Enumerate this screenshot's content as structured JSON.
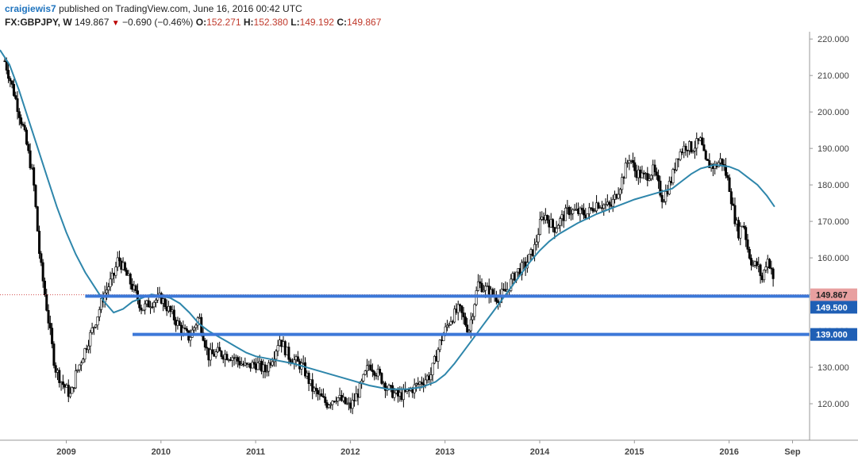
{
  "header": {
    "author": "craigiewis7",
    "published_text": "published on TradingView.com, June 16, 2016 00:42 UTC",
    "symbol": "FX:GBPJPY, W",
    "last": "149.867",
    "down_icon": "▼",
    "change": "−0.690 (−0.46%)",
    "open_label": "O:",
    "open_value": "152.271",
    "high_label": "H:",
    "high_value": "152.380",
    "low_label": "L:",
    "low_value": "149.192",
    "close_label": "C:",
    "close_value": "149.867"
  },
  "chart_data": {
    "type": "candlestick",
    "title": "FX:GBPJPY, W",
    "x_range": [
      2008.3,
      2016.85
    ],
    "y_range": [
      110,
      222
    ],
    "x_tick_labels": [
      {
        "label": "2009",
        "x": 2009.0
      },
      {
        "label": "2010",
        "x": 2010.0
      },
      {
        "label": "2011",
        "x": 2011.0
      },
      {
        "label": "2012",
        "x": 2012.0
      },
      {
        "label": "2013",
        "x": 2013.0
      },
      {
        "label": "2014",
        "x": 2014.0
      },
      {
        "label": "2015",
        "x": 2015.0
      },
      {
        "label": "2016",
        "x": 2016.0
      },
      {
        "label": "Sep",
        "x": 2016.67
      }
    ],
    "y_tick_labels": [
      {
        "label": "220.000",
        "y": 220
      },
      {
        "label": "210.000",
        "y": 210
      },
      {
        "label": "200.000",
        "y": 200
      },
      {
        "label": "190.000",
        "y": 190
      },
      {
        "label": "180.000",
        "y": 180
      },
      {
        "label": "170.000",
        "y": 170
      },
      {
        "label": "160.000",
        "y": 160
      },
      {
        "label": "150.000",
        "y": 150
      },
      {
        "label": "140.000",
        "y": 140
      },
      {
        "label": "130.000",
        "y": 130
      },
      {
        "label": "120.000",
        "y": 120
      }
    ],
    "price_path": [
      [
        2008.35,
        214
      ],
      [
        2008.45,
        205
      ],
      [
        2008.55,
        195
      ],
      [
        2008.65,
        182
      ],
      [
        2008.72,
        160
      ],
      [
        2008.8,
        145
      ],
      [
        2008.88,
        130
      ],
      [
        2008.95,
        126
      ],
      [
        2009.05,
        122
      ],
      [
        2009.1,
        128
      ],
      [
        2009.2,
        135
      ],
      [
        2009.3,
        142
      ],
      [
        2009.4,
        150
      ],
      [
        2009.5,
        155
      ],
      [
        2009.55,
        160
      ],
      [
        2009.62,
        156
      ],
      [
        2009.7,
        152
      ],
      [
        2009.8,
        146
      ],
      [
        2009.9,
        148
      ],
      [
        2010.0,
        149
      ],
      [
        2010.1,
        145
      ],
      [
        2010.2,
        141
      ],
      [
        2010.3,
        138
      ],
      [
        2010.4,
        144
      ],
      [
        2010.5,
        133
      ],
      [
        2010.6,
        134
      ],
      [
        2010.75,
        133
      ],
      [
        2010.9,
        130
      ],
      [
        2011.0,
        131
      ],
      [
        2011.1,
        129
      ],
      [
        2011.2,
        134
      ],
      [
        2011.25,
        138
      ],
      [
        2011.35,
        133
      ],
      [
        2011.5,
        130
      ],
      [
        2011.6,
        124
      ],
      [
        2011.75,
        120
      ],
      [
        2011.85,
        122
      ],
      [
        2012.0,
        119
      ],
      [
        2012.1,
        124
      ],
      [
        2012.2,
        131
      ],
      [
        2012.3,
        128
      ],
      [
        2012.4,
        124
      ],
      [
        2012.5,
        122
      ],
      [
        2012.6,
        123
      ],
      [
        2012.7,
        125
      ],
      [
        2012.85,
        128
      ],
      [
        2012.95,
        137
      ],
      [
        2013.05,
        143
      ],
      [
        2013.15,
        146
      ],
      [
        2013.25,
        140
      ],
      [
        2013.35,
        153
      ],
      [
        2013.45,
        151
      ],
      [
        2013.55,
        149
      ],
      [
        2013.65,
        151
      ],
      [
        2013.75,
        156
      ],
      [
        2013.85,
        158
      ],
      [
        2013.95,
        163
      ],
      [
        2014.0,
        169
      ],
      [
        2014.05,
        172
      ],
      [
        2014.15,
        168
      ],
      [
        2014.3,
        173
      ],
      [
        2014.5,
        172
      ],
      [
        2014.6,
        175
      ],
      [
        2014.75,
        174
      ],
      [
        2014.85,
        180
      ],
      [
        2014.95,
        188
      ],
      [
        2015.0,
        184
      ],
      [
        2015.1,
        182
      ],
      [
        2015.2,
        184
      ],
      [
        2015.3,
        176
      ],
      [
        2015.4,
        182
      ],
      [
        2015.45,
        188
      ],
      [
        2015.55,
        191
      ],
      [
        2015.6,
        190
      ],
      [
        2015.7,
        192
      ],
      [
        2015.75,
        186
      ],
      [
        2015.85,
        185
      ],
      [
        2015.92,
        187
      ],
      [
        2016.0,
        180
      ],
      [
        2016.05,
        172
      ],
      [
        2016.1,
        167
      ],
      [
        2016.15,
        170
      ],
      [
        2016.2,
        162
      ],
      [
        2016.25,
        158
      ],
      [
        2016.3,
        158
      ],
      [
        2016.35,
        154
      ],
      [
        2016.4,
        160
      ],
      [
        2016.45,
        157
      ],
      [
        2016.48,
        149.9
      ]
    ],
    "moving_average": [
      [
        2008.3,
        217
      ],
      [
        2008.4,
        213
      ],
      [
        2008.5,
        206
      ],
      [
        2008.6,
        198
      ],
      [
        2008.7,
        190
      ],
      [
        2008.8,
        182
      ],
      [
        2008.9,
        174
      ],
      [
        2009.0,
        167
      ],
      [
        2009.1,
        161
      ],
      [
        2009.2,
        156
      ],
      [
        2009.3,
        152
      ],
      [
        2009.4,
        148
      ],
      [
        2009.5,
        145
      ],
      [
        2009.6,
        146
      ],
      [
        2009.7,
        148
      ],
      [
        2009.8,
        149
      ],
      [
        2009.9,
        150
      ],
      [
        2010.0,
        149.5
      ],
      [
        2010.1,
        149
      ],
      [
        2010.2,
        147.5
      ],
      [
        2010.3,
        145
      ],
      [
        2010.4,
        142
      ],
      [
        2010.5,
        140
      ],
      [
        2010.6,
        138.5
      ],
      [
        2010.7,
        137
      ],
      [
        2010.8,
        135.5
      ],
      [
        2010.9,
        134
      ],
      [
        2011.0,
        133
      ],
      [
        2011.2,
        132
      ],
      [
        2011.4,
        131
      ],
      [
        2011.6,
        129.5
      ],
      [
        2011.8,
        128
      ],
      [
        2012.0,
        126.5
      ],
      [
        2012.2,
        125
      ],
      [
        2012.4,
        124
      ],
      [
        2012.6,
        124
      ],
      [
        2012.75,
        124.5
      ],
      [
        2012.9,
        126
      ],
      [
        2013.0,
        128
      ],
      [
        2013.1,
        131
      ],
      [
        2013.2,
        134.5
      ],
      [
        2013.3,
        138
      ],
      [
        2013.4,
        141.5
      ],
      [
        2013.5,
        145
      ],
      [
        2013.6,
        148.5
      ],
      [
        2013.7,
        152
      ],
      [
        2013.8,
        155.5
      ],
      [
        2013.9,
        159
      ],
      [
        2014.0,
        162
      ],
      [
        2014.1,
        164.5
      ],
      [
        2014.2,
        166.5
      ],
      [
        2014.3,
        168
      ],
      [
        2014.4,
        169.5
      ],
      [
        2014.6,
        172
      ],
      [
        2014.8,
        174
      ],
      [
        2015.0,
        176
      ],
      [
        2015.2,
        177.5
      ],
      [
        2015.4,
        179
      ],
      [
        2015.5,
        181
      ],
      [
        2015.6,
        183
      ],
      [
        2015.7,
        184.5
      ],
      [
        2015.85,
        185.5
      ],
      [
        2016.0,
        185
      ],
      [
        2016.1,
        184
      ],
      [
        2016.2,
        182
      ],
      [
        2016.3,
        180
      ],
      [
        2016.4,
        177
      ],
      [
        2016.48,
        174
      ]
    ],
    "horizontal_levels": [
      {
        "value": 149.5,
        "label": "149.500",
        "x_start": 2009.2
      },
      {
        "value": 139.0,
        "label": "139.000",
        "x_start": 2009.7
      }
    ],
    "last_price": {
      "value": 149.867,
      "label": "149.867"
    },
    "colors": {
      "candle": "#000000",
      "moving_average": "#2e86ab",
      "level_line": "#3c78d8",
      "level_badge": "#1f5fb5",
      "last_badge": "#e8a0a0",
      "last_dotted": "#d45050",
      "axis_text": "#444444",
      "author": "#1e73be"
    }
  }
}
